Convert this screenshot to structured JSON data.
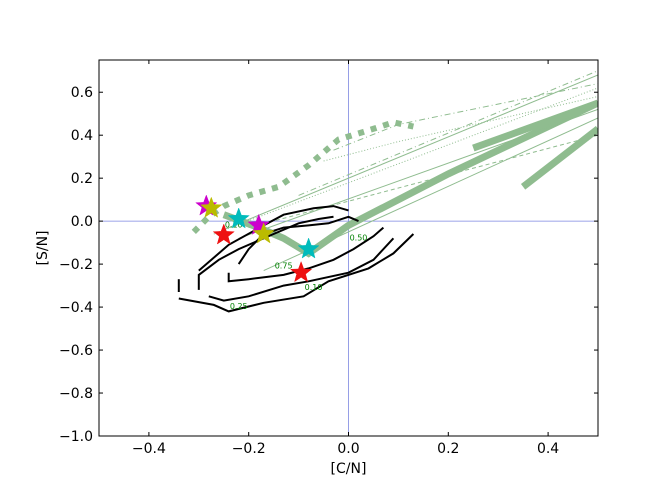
{
  "chart_data": {
    "type": "line",
    "xlabel": "[C/N]",
    "ylabel": "[S/N]",
    "xlim": [
      -0.5,
      0.5
    ],
    "ylim": [
      -1.0,
      0.75
    ],
    "x_ticks": [
      -0.4,
      -0.2,
      0.0,
      0.2,
      0.4
    ],
    "y_ticks": [
      -1.0,
      -0.8,
      -0.6,
      -0.4,
      -0.2,
      0.0,
      0.2,
      0.4,
      0.6
    ],
    "x_tick_labels": [
      "−0.4",
      "−0.2",
      "0.0",
      "0.2",
      "0.4"
    ],
    "y_tick_labels": [
      "−1.0",
      "−0.8",
      "−0.6",
      "−0.4",
      "−0.2",
      "0.0",
      "0.2",
      "0.4",
      "0.6"
    ],
    "reference_lines": {
      "x": 0.0,
      "y": 0.0,
      "color": "#7b86e0"
    },
    "colors": {
      "model": "#8fbc8f",
      "contour": "#000000",
      "contour_label": "#008000"
    },
    "contours": [
      {
        "label": "0.10",
        "label_at": [
          -0.07,
          -0.32
        ],
        "segments": [
          [
            [
              -0.34,
              -0.36
            ],
            [
              -0.27,
              -0.39
            ],
            [
              -0.24,
              -0.42
            ],
            [
              -0.17,
              -0.38
            ],
            [
              -0.09,
              -0.35
            ],
            [
              -0.04,
              -0.28
            ],
            [
              0.04,
              -0.22
            ],
            [
              0.09,
              -0.15
            ],
            [
              0.13,
              -0.06
            ]
          ],
          [
            [
              -0.34,
              -0.33
            ],
            [
              -0.34,
              -0.27
            ]
          ]
        ]
      },
      {
        "label": "0.25",
        "label_at": [
          -0.22,
          -0.41
        ],
        "segments": [
          [
            [
              -0.28,
              -0.35
            ],
            [
              -0.25,
              -0.37
            ],
            [
              -0.2,
              -0.35
            ],
            [
              -0.13,
              -0.3
            ],
            [
              -0.08,
              -0.28
            ],
            [
              0.0,
              -0.24
            ],
            [
              0.05,
              -0.18
            ],
            [
              0.09,
              -0.08
            ]
          ],
          [
            [
              -0.3,
              -0.32
            ],
            [
              -0.3,
              -0.25
            ],
            [
              -0.26,
              -0.18
            ],
            [
              -0.22,
              -0.13
            ],
            [
              -0.15,
              -0.06
            ],
            [
              -0.1,
              -0.01
            ],
            [
              -0.06,
              0.01
            ],
            [
              -0.03,
              0.02
            ]
          ],
          [
            [
              -0.3,
              -0.23
            ],
            [
              -0.24,
              -0.11
            ],
            [
              -0.17,
              -0.02
            ],
            [
              -0.13,
              0.03
            ],
            [
              -0.07,
              0.06
            ],
            [
              -0.03,
              0.07
            ],
            [
              0.0,
              0.05
            ]
          ]
        ]
      },
      {
        "label": "0.50",
        "label_at": [
          0.02,
          -0.09
        ],
        "segments": [
          [
            [
              -0.24,
              -0.24
            ],
            [
              -0.24,
              -0.28
            ],
            [
              -0.2,
              -0.27
            ],
            [
              -0.13,
              -0.25
            ],
            [
              -0.08,
              -0.22
            ],
            [
              -0.03,
              -0.18
            ],
            [
              0.01,
              -0.13
            ],
            [
              0.05,
              -0.07
            ],
            [
              0.07,
              -0.03
            ]
          ],
          [
            [
              -0.22,
              -0.2
            ],
            [
              -0.2,
              -0.13
            ],
            [
              -0.17,
              -0.06
            ],
            [
              -0.13,
              -0.03
            ],
            [
              -0.08,
              -0.02
            ],
            [
              -0.04,
              -0.01
            ],
            [
              0.0,
              0.02
            ],
            [
              0.02,
              0.0
            ]
          ]
        ]
      },
      {
        "label": "0.75",
        "label_at": [
          -0.13,
          -0.22
        ],
        "segments": []
      },
      {
        "label": "0.10",
        "label_at": [
          -0.23,
          -0.03
        ],
        "segments": []
      }
    ],
    "model_tracks": [
      {
        "style": "thick-solid",
        "points": [
          [
            -0.25,
            0.03
          ],
          [
            -0.18,
            -0.03
          ],
          [
            -0.13,
            -0.08
          ],
          [
            -0.08,
            -0.15
          ],
          [
            0.0,
            -0.02
          ],
          [
            0.2,
            0.22
          ],
          [
            0.5,
            0.55
          ]
        ]
      },
      {
        "style": "thick-solid",
        "points": [
          [
            0.25,
            0.34
          ],
          [
            0.5,
            0.55
          ]
        ]
      },
      {
        "style": "thick-solid",
        "points": [
          [
            0.35,
            0.16
          ],
          [
            0.5,
            0.43
          ]
        ]
      },
      {
        "style": "thick-dotted",
        "points": [
          [
            -0.31,
            -0.05
          ],
          [
            -0.28,
            0.02
          ],
          [
            -0.25,
            0.07
          ],
          [
            -0.2,
            0.12
          ],
          [
            -0.14,
            0.16
          ],
          [
            -0.08,
            0.26
          ],
          [
            -0.02,
            0.38
          ],
          [
            0.05,
            0.43
          ],
          [
            0.09,
            0.46
          ],
          [
            0.13,
            0.44
          ]
        ]
      },
      {
        "style": "thin-solid",
        "points": [
          [
            -0.25,
            -0.04
          ],
          [
            0.5,
            0.68
          ]
        ]
      },
      {
        "style": "thin-solid",
        "points": [
          [
            -0.22,
            -0.08
          ],
          [
            0.5,
            0.52
          ]
        ]
      },
      {
        "style": "thin-solid",
        "points": [
          [
            -0.17,
            -0.23
          ],
          [
            0.5,
            0.48
          ]
        ]
      },
      {
        "style": "thin-dashed",
        "points": [
          [
            -0.2,
            -0.03
          ],
          [
            0.5,
            0.4
          ]
        ]
      },
      {
        "style": "thin-dashdot",
        "points": [
          [
            -0.1,
            0.12
          ],
          [
            0.5,
            0.7
          ]
        ]
      },
      {
        "style": "thin-dashdot",
        "points": [
          [
            -0.03,
            0.33
          ],
          [
            0.1,
            0.45
          ],
          [
            0.5,
            0.64
          ]
        ]
      },
      {
        "style": "thin-dotted",
        "points": [
          [
            -0.27,
            -0.06
          ],
          [
            0.5,
            0.62
          ]
        ]
      },
      {
        "style": "thin-dotted",
        "points": [
          [
            -0.05,
            0.28
          ],
          [
            0.1,
            0.37
          ],
          [
            0.5,
            0.58
          ]
        ]
      }
    ],
    "stars": [
      {
        "color": "#cc00cc",
        "x": -0.285,
        "y": 0.07
      },
      {
        "color": "#bbbb00",
        "x": -0.275,
        "y": 0.06
      },
      {
        "color": "#00bbbb",
        "x": -0.22,
        "y": 0.01
      },
      {
        "color": "#ee1111",
        "x": -0.25,
        "y": -0.065
      },
      {
        "color": "#cc00cc",
        "x": -0.18,
        "y": -0.02
      },
      {
        "color": "#bbbb00",
        "x": -0.17,
        "y": -0.06
      },
      {
        "color": "#00bbbb",
        "x": -0.08,
        "y": -0.13
      },
      {
        "color": "#ee1111",
        "x": -0.095,
        "y": -0.24
      }
    ]
  }
}
